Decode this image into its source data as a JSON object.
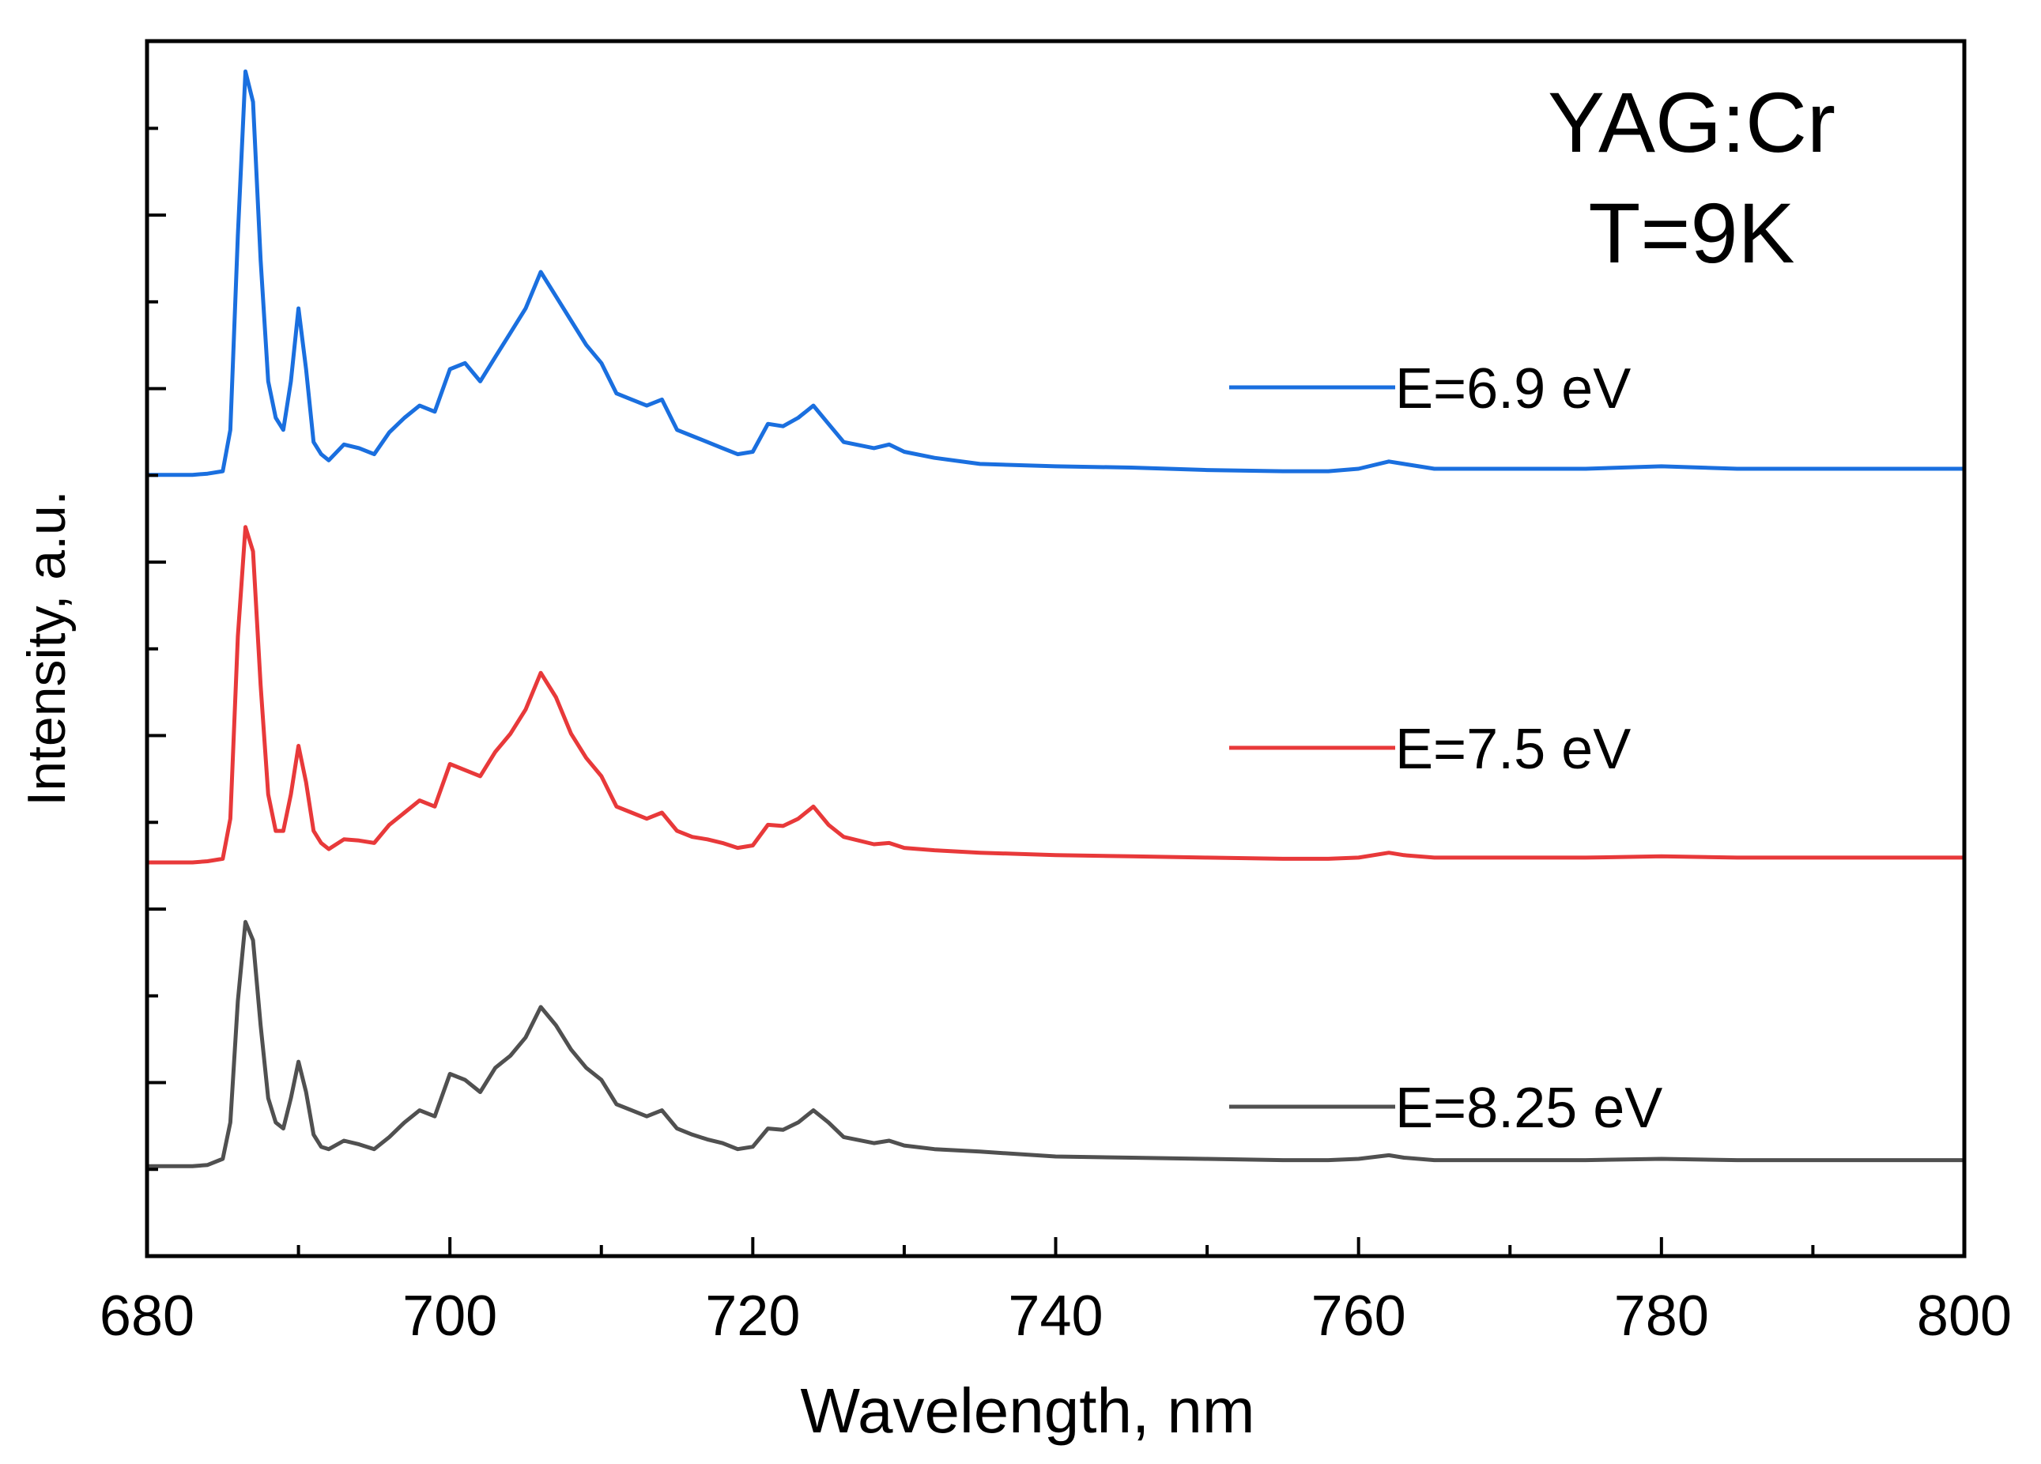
{
  "chart_data": {
    "type": "line",
    "title": "",
    "xlabel": "Wavelength, nm",
    "ylabel": "Intensity, a.u.",
    "xlim": [
      680,
      800
    ],
    "ylim": [
      0,
      100
    ],
    "xticks": [
      680,
      700,
      720,
      740,
      760,
      780,
      800
    ],
    "yticks_labeled": false,
    "grid": false,
    "annotation": [
      "YAG:Cr",
      "T=9K"
    ],
    "legend_position": "right",
    "series": [
      {
        "name": "E=6.9 eV",
        "color": "#1a6fdf",
        "offset": 64.3,
        "x": [
          680,
          682,
          683,
          684,
          685,
          685.5,
          686,
          686.5,
          687,
          687.5,
          688,
          688.5,
          689,
          689.5,
          690,
          690.5,
          691,
          691.5,
          692,
          693,
          694,
          695,
          696,
          697,
          698,
          699,
          700,
          701,
          702,
          703,
          704,
          705,
          706,
          707,
          708,
          709,
          710,
          711,
          712,
          713,
          714,
          715,
          716,
          717,
          718,
          719,
          720,
          721,
          722,
          723,
          724,
          725,
          726,
          728,
          729,
          730,
          732,
          735,
          740,
          745,
          750,
          755,
          758,
          760,
          762,
          763,
          765,
          770,
          775,
          780,
          785,
          790,
          795,
          800
        ],
        "y": [
          64.3,
          64.3,
          64.3,
          64.4,
          64.6,
          68,
          84,
          97.5,
          95,
          82,
          72,
          69,
          68,
          72,
          78,
          73,
          67,
          66,
          65.5,
          66.8,
          66.5,
          66,
          67.8,
          69,
          70,
          69.5,
          73,
          73.5,
          72,
          74,
          76,
          78,
          81,
          79,
          77,
          75,
          73.5,
          71,
          70.5,
          70,
          70.5,
          68,
          67.5,
          67,
          66.5,
          66,
          66.2,
          68.5,
          68.3,
          69,
          70,
          68.5,
          67,
          66.5,
          66.8,
          66.2,
          65.7,
          65.2,
          65,
          64.9,
          64.7,
          64.6,
          64.6,
          64.8,
          65.4,
          65.2,
          64.8,
          64.8,
          64.8,
          65,
          64.8,
          64.8,
          64.8,
          64.8
        ]
      },
      {
        "name": "E=7.5 eV",
        "color": "#e8393a",
        "offset": 32.4,
        "x": [
          680,
          682,
          683,
          684,
          685,
          685.5,
          686,
          686.5,
          687,
          687.5,
          688,
          688.5,
          689,
          689.5,
          690,
          690.5,
          691,
          691.5,
          692,
          693,
          694,
          695,
          696,
          697,
          698,
          699,
          700,
          701,
          702,
          703,
          704,
          705,
          706,
          707,
          708,
          709,
          710,
          711,
          712,
          713,
          714,
          715,
          716,
          717,
          718,
          719,
          720,
          721,
          722,
          723,
          724,
          725,
          726,
          728,
          729,
          730,
          732,
          735,
          740,
          745,
          750,
          755,
          758,
          760,
          762,
          763,
          765,
          770,
          775,
          780,
          785,
          790,
          795,
          800
        ],
        "y": [
          32.4,
          32.4,
          32.4,
          32.5,
          32.7,
          36,
          51,
          60,
          58,
          47,
          38,
          35,
          35,
          38,
          42,
          39,
          35,
          34,
          33.5,
          34.3,
          34.2,
          34,
          35.5,
          36.5,
          37.5,
          37,
          40.5,
          40,
          39.5,
          41.5,
          43,
          45,
          48,
          46,
          43,
          41,
          39.5,
          37,
          36.5,
          36,
          36.5,
          35,
          34.5,
          34.3,
          34,
          33.6,
          33.8,
          35.5,
          35.4,
          36,
          37,
          35.5,
          34.5,
          33.9,
          34,
          33.6,
          33.4,
          33.2,
          33,
          32.9,
          32.8,
          32.7,
          32.7,
          32.8,
          33.2,
          33,
          32.8,
          32.8,
          32.8,
          32.9,
          32.8,
          32.8,
          32.8,
          32.8
        ]
      },
      {
        "name": "E=8.25 eV",
        "color": "#505050",
        "offset": 7.4,
        "x": [
          680,
          682,
          683,
          684,
          685,
          685.5,
          686,
          686.5,
          687,
          687.5,
          688,
          688.5,
          689,
          689.5,
          690,
          690.5,
          691,
          691.5,
          692,
          693,
          694,
          695,
          696,
          697,
          698,
          699,
          700,
          701,
          702,
          703,
          704,
          705,
          706,
          707,
          708,
          709,
          710,
          711,
          712,
          713,
          714,
          715,
          716,
          717,
          718,
          719,
          720,
          721,
          722,
          723,
          724,
          725,
          726,
          728,
          729,
          730,
          732,
          735,
          740,
          745,
          750,
          755,
          758,
          760,
          762,
          763,
          765,
          770,
          775,
          780,
          785,
          790,
          795,
          800
        ],
        "y": [
          7.4,
          7.4,
          7.4,
          7.5,
          8,
          11,
          21,
          27.5,
          26,
          19,
          13,
          11,
          10.5,
          13,
          16,
          13.5,
          10,
          9,
          8.8,
          9.5,
          9.2,
          8.8,
          9.8,
          11,
          12,
          11.5,
          15,
          14.5,
          13.5,
          15.5,
          16.5,
          18,
          20.5,
          19,
          17,
          15.5,
          14.5,
          12.5,
          12,
          11.5,
          12,
          10.5,
          10,
          9.6,
          9.3,
          8.8,
          9,
          10.5,
          10.4,
          11,
          12,
          11,
          9.8,
          9.3,
          9.5,
          9.1,
          8.8,
          8.6,
          8.2,
          8.1,
          8,
          7.9,
          7.9,
          8,
          8.3,
          8.1,
          7.9,
          7.9,
          7.9,
          8,
          7.9,
          7.9,
          7.9,
          7.9
        ]
      }
    ]
  }
}
